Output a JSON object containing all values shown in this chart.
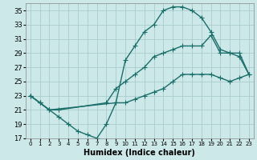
{
  "xlabel": "Humidex (Indice chaleur)",
  "bg_color": "#cce8e8",
  "grid_color": "#aacccc",
  "line_color": "#1a6e6a",
  "xlim": [
    -0.5,
    23.5
  ],
  "ylim": [
    17,
    36
  ],
  "xticks": [
    0,
    1,
    2,
    3,
    4,
    5,
    6,
    7,
    8,
    9,
    10,
    11,
    12,
    13,
    14,
    15,
    16,
    17,
    18,
    19,
    20,
    21,
    22,
    23
  ],
  "yticks": [
    17,
    19,
    21,
    23,
    25,
    27,
    29,
    31,
    33,
    35
  ],
  "series": [
    {
      "x": [
        0,
        1,
        2,
        9,
        10,
        11,
        12,
        13,
        14,
        15,
        16,
        17,
        18,
        19,
        20,
        21,
        22,
        23
      ],
      "y": [
        23,
        22,
        21,
        22,
        28,
        30,
        32,
        33,
        35,
        35.5,
        35.5,
        35,
        34,
        32,
        29.5,
        29,
        28.5,
        26
      ]
    },
    {
      "x": [
        0,
        1,
        2,
        3,
        8,
        9,
        10,
        11,
        12,
        13,
        14,
        15,
        16,
        17,
        18,
        19,
        20,
        21,
        22,
        23
      ],
      "y": [
        23,
        22,
        21,
        21,
        22,
        24,
        25,
        26,
        27,
        28.5,
        29,
        29.5,
        30,
        30,
        30,
        31.5,
        29,
        29,
        29,
        26
      ]
    },
    {
      "x": [
        0,
        1,
        2,
        3,
        4,
        5,
        6,
        7,
        8,
        9,
        10,
        11,
        12,
        13,
        14,
        15,
        16,
        17,
        18,
        19,
        20,
        21,
        22,
        23
      ],
      "y": [
        23,
        22,
        21,
        20,
        19,
        18,
        17.5,
        17,
        19,
        22,
        22,
        22.5,
        23,
        23.5,
        24,
        25,
        26,
        26,
        26,
        26,
        25.5,
        25,
        25.5,
        26
      ]
    }
  ],
  "marker": "+",
  "markersize": 4,
  "linewidth": 1.0,
  "tick_fontsize": 6,
  "xlabel_fontsize": 7
}
